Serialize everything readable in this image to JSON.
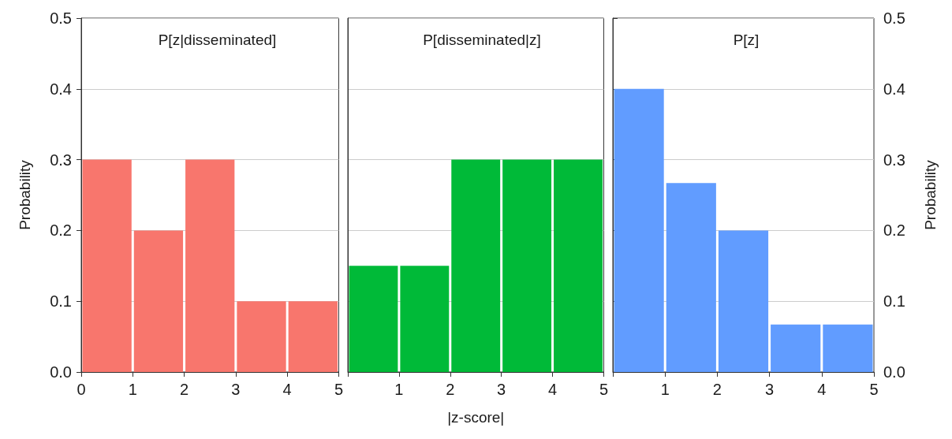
{
  "chart_data": [
    {
      "type": "histogram",
      "title": "P[z|disseminated]",
      "bins": [
        0,
        1,
        2,
        3,
        4,
        5
      ],
      "series": [
        {
          "color": "#f8766d",
          "values": [
            0.3,
            0.2,
            0.3,
            0.1,
            0.1
          ]
        }
      ],
      "ylabel": "Probability",
      "ylim": [
        0,
        0.5
      ],
      "yticks": [
        {
          "value": 0,
          "label": "0.0"
        },
        0.1,
        0.2,
        0.3,
        0.4,
        0.5
      ],
      "xlim": [
        0,
        5
      ],
      "xticks": [
        0,
        1,
        2,
        3,
        4,
        5
      ],
      "grid": "y"
    },
    {
      "type": "histogram",
      "title": "P[disseminated|z]",
      "bins": [
        0,
        1,
        2,
        3,
        4,
        5
      ],
      "series": [
        {
          "color": "#00ba38",
          "values": [
            0.15,
            0.15,
            0.3,
            0.3,
            0.3
          ]
        }
      ],
      "xlabel": "|z-score|",
      "ylim": [
        0,
        0.5
      ],
      "yticks": [
        0,
        0.1,
        0.2,
        0.3,
        0.4,
        0.5
      ],
      "xlim": [
        0,
        5
      ],
      "xticks": [
        {
          "value": 0,
          "label": null
        },
        1,
        2,
        3,
        4,
        5
      ],
      "grid": "y",
      "tick_labels": "x"
    },
    {
      "type": "histogram",
      "title": "P[z]",
      "bins": [
        0,
        1,
        2,
        3,
        4,
        5
      ],
      "series": [
        {
          "color": "#619cff",
          "values": [
            0.4,
            0.267,
            0.2,
            0.067,
            0.067
          ],
          "axis": "y2"
        }
      ],
      "y2label": "Probability",
      "y2lim": [
        0,
        0.5
      ],
      "y2ticks": [
        {
          "value": 0,
          "label": "0.0"
        },
        0.1,
        0.2,
        0.3,
        0.4,
        0.5
      ],
      "xlim": [
        0,
        5
      ],
      "xticks": [
        {
          "value": 0,
          "label": null
        },
        1,
        2,
        3,
        4,
        5
      ],
      "grid": "y"
    }
  ]
}
